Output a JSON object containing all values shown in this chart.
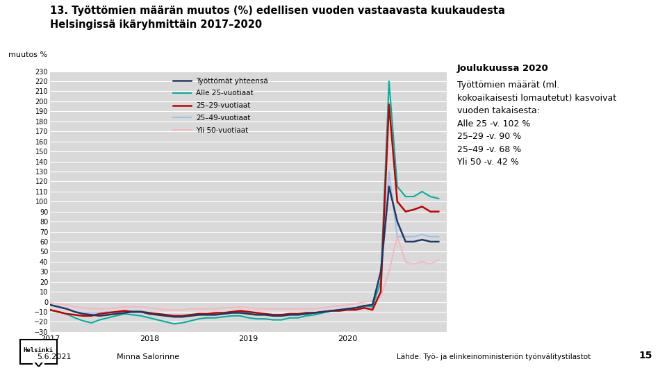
{
  "title_line1": "13. Työttömien määrän muutos (%) edellisen vuoden vastaavasta kuukaudesta",
  "title_line2": "Helsingissä ikäryhmittäin 2017–2020",
  "ylabel": "muutos %",
  "background_color": "#ffffff",
  "plot_bg_color": "#d9d9d9",
  "ylim": [
    -30,
    230
  ],
  "yticks": [
    -30,
    -20,
    -10,
    0,
    10,
    20,
    30,
    40,
    50,
    60,
    70,
    80,
    90,
    100,
    110,
    120,
    130,
    140,
    150,
    160,
    170,
    180,
    190,
    200,
    210,
    220,
    230
  ],
  "series": {
    "total": {
      "label": "Työttömät yhteensä",
      "color": "#1f3864",
      "linewidth": 1.8
    },
    "under25": {
      "label": "Alle 25-vuotiaat",
      "color": "#00b0a0",
      "linewidth": 1.5
    },
    "age25_29": {
      "label": "25–29-vuotiaat",
      "color": "#c00000",
      "linewidth": 1.8
    },
    "age25_49": {
      "label": "25–49-vuotiaat",
      "color": "#9dc3e6",
      "linewidth": 1.5
    },
    "over50": {
      "label": "Yli 50-vuotiaat",
      "color": "#f4b8c1",
      "linewidth": 1.5
    }
  },
  "annotation_title": "Joulukuussa 2020",
  "annotation_body": "Työttömien määrät (ml.\nkokoaikaisesti lomautetut) kasvoivat\nvuoden takaisesta:\nAlle 25 -v. 102 %\n25–29 -v. 90 %\n25–49 -v. 68 %\nYli 50 -v. 42 %",
  "footer_date": "5.6.2021",
  "footer_name": "Minna Salorinne",
  "footer_source": "Lähde: Työ- ja elinkeinoministeriön työnvälitystilastot",
  "footer_page": "15",
  "n_months": 48
}
